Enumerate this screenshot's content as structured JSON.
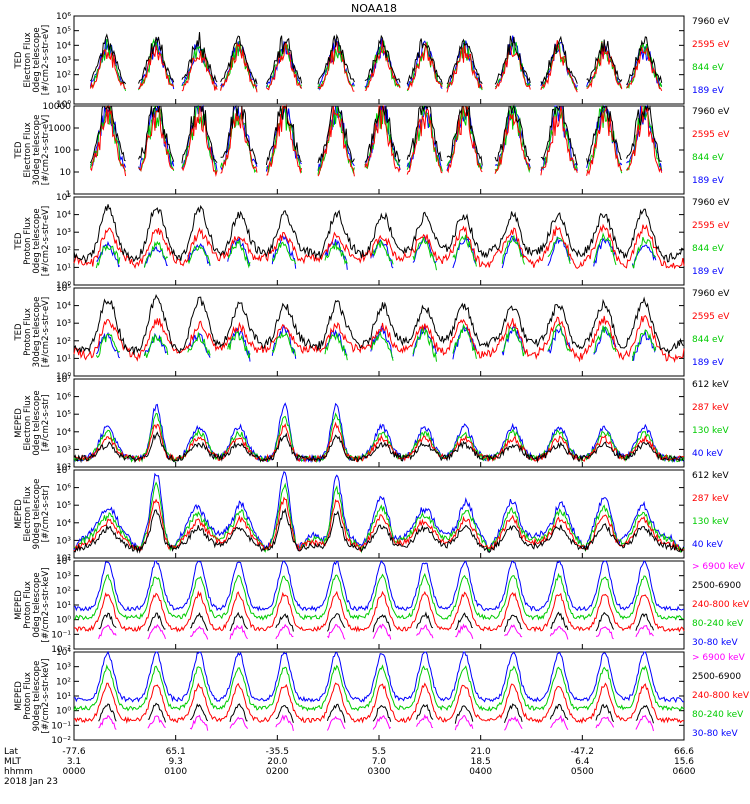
{
  "chart_data": {
    "type": "line",
    "title": "NOAA18",
    "date_label": "2018 Jan 23",
    "x_axis": {
      "rows": [
        {
          "label": "Lat",
          "values": [
            "-77.6",
            "65.1",
            "-35.5",
            "5.5",
            "21.0",
            "-47.2",
            "66.6"
          ]
        },
        {
          "label": "MLT",
          "values": [
            "3.1",
            "9.3",
            "20.0",
            "7.0",
            "18.5",
            "6.4",
            "15.6"
          ]
        },
        {
          "label": "hhmm",
          "values": [
            "0000",
            "0100",
            "0200",
            "0300",
            "0400",
            "0500",
            "0600"
          ]
        }
      ]
    },
    "panels": [
      {
        "ylabel": [
          "TED",
          "Electron Flux",
          "0deg telescope",
          "[#/cm2-s-str-eV]"
        ],
        "yticks": [
          "10⁰",
          "10¹",
          "10²",
          "10³",
          "10⁴",
          "10⁵",
          "10⁶"
        ],
        "ylim_log10": [
          0,
          6
        ],
        "legend": [
          {
            "name": "7960 eV",
            "color": "#000000"
          },
          {
            "name": "2595 eV",
            "color": "#ff0000"
          },
          {
            "name": "844 eV",
            "color": "#00cc00"
          },
          {
            "name": "189 eV",
            "color": "#0000ff"
          }
        ],
        "kind": "ted_e"
      },
      {
        "ylabel": [
          "TED",
          "Electron Flux",
          "30deg telescope",
          "[#/cm2-s-str-eV]"
        ],
        "yticks": [
          "1",
          "10",
          "100",
          "1000",
          "10000"
        ],
        "ylim_log10": [
          0,
          4
        ],
        "legend": [
          {
            "name": "7960 eV",
            "color": "#000000"
          },
          {
            "name": "2595 eV",
            "color": "#ff0000"
          },
          {
            "name": "844 eV",
            "color": "#00cc00"
          },
          {
            "name": "189 eV",
            "color": "#0000ff"
          }
        ],
        "kind": "ted_e"
      },
      {
        "ylabel": [
          "TED",
          "Proton Flux",
          "0deg telescope",
          "[#/cm2-s-str-eV]"
        ],
        "yticks": [
          "10⁰",
          "10¹",
          "10²",
          "10³",
          "10⁴",
          "10⁵"
        ],
        "ylim_log10": [
          0,
          5
        ],
        "legend": [
          {
            "name": "7960 eV",
            "color": "#000000"
          },
          {
            "name": "2595 eV",
            "color": "#ff0000"
          },
          {
            "name": "844 eV",
            "color": "#00cc00"
          },
          {
            "name": "189 eV",
            "color": "#0000ff"
          }
        ],
        "kind": "ted_p"
      },
      {
        "ylabel": [
          "TED",
          "Proton Flux",
          "30deg telescope",
          "[#/cm2-s-str-eV]"
        ],
        "yticks": [
          "10⁰",
          "10¹",
          "10²",
          "10³",
          "10⁴",
          "10⁵"
        ],
        "ylim_log10": [
          0,
          5
        ],
        "legend": [
          {
            "name": "7960 eV",
            "color": "#000000"
          },
          {
            "name": "2595 eV",
            "color": "#ff0000"
          },
          {
            "name": "844 eV",
            "color": "#00cc00"
          },
          {
            "name": "189 eV",
            "color": "#0000ff"
          }
        ],
        "kind": "ted_p"
      },
      {
        "ylabel": [
          "MEPED",
          "Electron Flux",
          "0deg telescope",
          "[#/cm2-s-str]"
        ],
        "yticks": [
          "10²",
          "10³",
          "10⁴",
          "10⁵",
          "10⁶",
          "10⁷"
        ],
        "ylim_log10": [
          2,
          7
        ],
        "legend": [
          {
            "name": "612 keV",
            "color": "#000000"
          },
          {
            "name": "287 keV",
            "color": "#ff0000"
          },
          {
            "name": "130 keV",
            "color": "#00cc00"
          },
          {
            "name": "40 keV",
            "color": "#0000ff"
          }
        ],
        "kind": "meped_e"
      },
      {
        "ylabel": [
          "MEPED",
          "Electron Flux",
          "90deg telescope",
          "[#/cm2-s-str]"
        ],
        "yticks": [
          "10²",
          "10³",
          "10⁴",
          "10⁵",
          "10⁶",
          "10⁷"
        ],
        "ylim_log10": [
          2,
          7
        ],
        "legend": [
          {
            "name": "612 keV",
            "color": "#000000"
          },
          {
            "name": "287 keV",
            "color": "#ff0000"
          },
          {
            "name": "130 keV",
            "color": "#00cc00"
          },
          {
            "name": "40 keV",
            "color": "#0000ff"
          }
        ],
        "kind": "meped_e90"
      },
      {
        "ylabel": [
          "MEPED",
          "Proton Flux",
          "0deg telescope",
          "[#/cm2-s-str-keV]"
        ],
        "yticks": [
          "10⁻²",
          "10⁻¹",
          "10⁰",
          "10¹",
          "10²",
          "10³",
          "10⁴"
        ],
        "ylim_log10": [
          -2,
          4
        ],
        "legend": [
          {
            "name": "> 6900 keV",
            "color": "#ff00ff"
          },
          {
            "name": "2500-6900",
            "color": "#000000"
          },
          {
            "name": "240-800 keV",
            "color": "#ff0000"
          },
          {
            "name": "80-240 keV",
            "color": "#00cc00"
          },
          {
            "name": "30-80 keV",
            "color": "#0000ff"
          }
        ],
        "kind": "meped_p"
      },
      {
        "ylabel": [
          "MEPED",
          "Proton Flux",
          "90deg telescope",
          "[#/cm2-s-str-keV]"
        ],
        "yticks": [
          "10⁻²",
          "10⁻¹",
          "10⁰",
          "10¹",
          "10²",
          "10³",
          "10⁴"
        ],
        "ylim_log10": [
          -2,
          4
        ],
        "legend": [
          {
            "name": "> 6900 keV",
            "color": "#ff00ff"
          },
          {
            "name": "2500-6900",
            "color": "#000000"
          },
          {
            "name": "240-800 keV",
            "color": "#ff0000"
          },
          {
            "name": "80-240 keV",
            "color": "#00cc00"
          },
          {
            "name": "30-80 keV",
            "color": "#0000ff"
          }
        ],
        "kind": "meped_p90"
      }
    ],
    "time_range_hours": [
      0,
      6
    ],
    "grid": false
  }
}
